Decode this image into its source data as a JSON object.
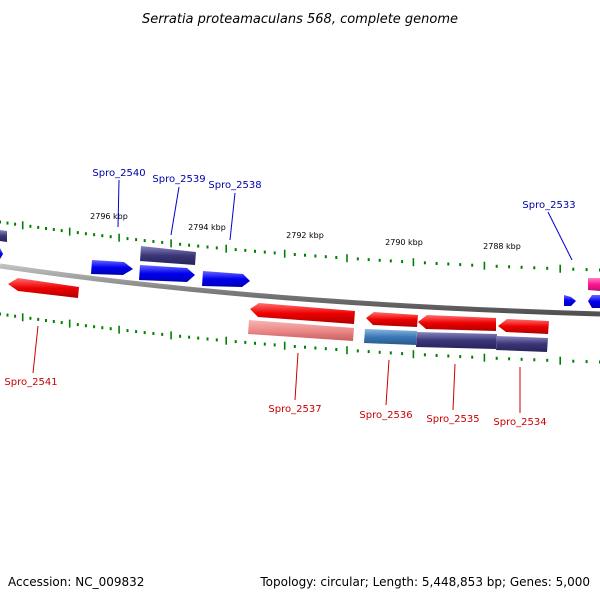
{
  "title": "Serratia proteamaculans 568, complete genome",
  "accession_label": "Accession: NC_009832",
  "summary_label": "Topology: circular; Length: 5,448,853 bp; Genes: 5,000",
  "colors": {
    "backbone": "#888888",
    "tick": "#008000",
    "forward_gene": "#0000ff",
    "reverse_gene": "#ff0000",
    "forward_label": "#0000aa",
    "reverse_label": "#cc0000"
  },
  "kbp_marks": [
    "2796 kbp",
    "2794 kbp",
    "2792 kbp",
    "2790 kbp",
    "2788 kbp"
  ],
  "genes": [
    {
      "name": "Spro_2533",
      "strand": "+"
    },
    {
      "name": "Spro_2534",
      "strand": "-"
    },
    {
      "name": "Spro_2535",
      "strand": "-"
    },
    {
      "name": "Spro_2536",
      "strand": "-"
    },
    {
      "name": "Spro_2537",
      "strand": "-"
    },
    {
      "name": "Spro_2538",
      "strand": "+"
    },
    {
      "name": "Spro_2539",
      "strand": "+"
    },
    {
      "name": "Spro_2540",
      "strand": "+"
    },
    {
      "name": "Spro_2541",
      "strand": "-"
    }
  ]
}
